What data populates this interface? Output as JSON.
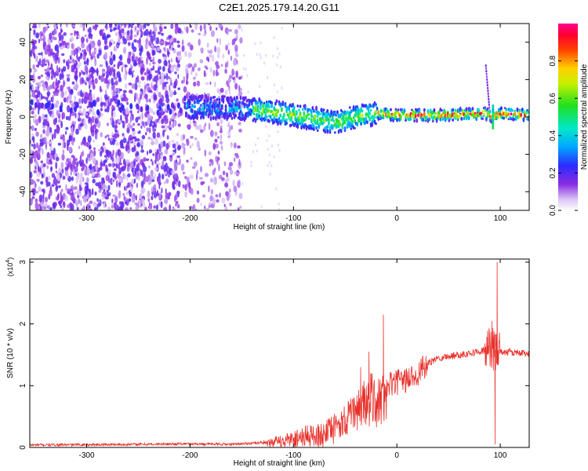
{
  "title": "C2E1.2025.179.14.20.G11",
  "chart_data": [
    {
      "type": "heatmap",
      "xlabel": "Height of straight line (km)",
      "ylabel": "Frequency (Hz)",
      "xlim": [
        -355,
        128
      ],
      "ylim": [
        -50,
        50
      ],
      "x_ticks": [
        -300,
        -200,
        -100,
        0,
        100
      ],
      "x_tick_labels": [
        "-300",
        "-200",
        "-100",
        "0",
        "100"
      ],
      "y_ticks": [
        -40,
        -20,
        0,
        20,
        40
      ],
      "y_tick_labels": [
        "-40",
        "-20",
        "0",
        "20",
        "40"
      ],
      "colorbar": {
        "label": "Normalized spectral amplitude",
        "range": [
          0,
          1
        ],
        "ticks": [
          0,
          0.2,
          0.4,
          0.6,
          0.8
        ],
        "tick_labels": [
          "0.0",
          "0.2",
          "0.4",
          "0.6",
          "0.8"
        ],
        "colormap": "rainbow (white-violet-blue-cyan-green-yellow-red-magenta)"
      },
      "ridge": {
        "description": "main signal band",
        "points": [
          {
            "x": -200,
            "y": 5
          },
          {
            "x": -160,
            "y": 5
          },
          {
            "x": -120,
            "y": 3
          },
          {
            "x": -90,
            "y": 0
          },
          {
            "x": -60,
            "y": -3
          },
          {
            "x": -40,
            "y": 0
          },
          {
            "x": -20,
            "y": 2
          },
          {
            "x": 0,
            "y": 1
          },
          {
            "x": 50,
            "y": 1
          },
          {
            "x": 85,
            "y": 2
          },
          {
            "x": 93,
            "y": 0
          },
          {
            "x": 100,
            "y": 2
          },
          {
            "x": 128,
            "y": 1
          }
        ]
      },
      "noise_region_x": [
        -355,
        -150
      ],
      "grid": false
    },
    {
      "type": "line",
      "xlabel": "Height of straight line (km)",
      "ylabel": "SNR (10 * v/v)",
      "y_multiplier": "(x10",
      "y_multiplier_exp": "4",
      "y_multiplier_close": ")",
      "xlim": [
        -355,
        128
      ],
      "ylim": [
        0,
        3.05
      ],
      "x_ticks": [
        -300,
        -200,
        -100,
        0,
        100
      ],
      "x_tick_labels": [
        "-300",
        "-200",
        "-100",
        "0",
        "100"
      ],
      "y_ticks": [
        0,
        1,
        2,
        3
      ],
      "y_tick_labels": [
        "0",
        "1",
        "2",
        "3"
      ],
      "series": [
        {
          "color": "#e8302a",
          "envelope": [
            {
              "x": -355,
              "y": 0.04
            },
            {
              "x": -250,
              "y": 0.05
            },
            {
              "x": -200,
              "y": 0.06
            },
            {
              "x": -160,
              "y": 0.05
            },
            {
              "x": -130,
              "y": 0.08
            },
            {
              "x": -110,
              "y": 0.15
            },
            {
              "x": -90,
              "y": 0.25
            },
            {
              "x": -70,
              "y": 0.3
            },
            {
              "x": -55,
              "y": 0.45
            },
            {
              "x": -45,
              "y": 0.6
            },
            {
              "x": -35,
              "y": 0.8
            },
            {
              "x": -25,
              "y": 0.9
            },
            {
              "x": -15,
              "y": 0.9
            },
            {
              "x": -10,
              "y": 1.0
            },
            {
              "x": 0,
              "y": 1.05
            },
            {
              "x": 10,
              "y": 1.1
            },
            {
              "x": 20,
              "y": 1.2
            },
            {
              "x": 30,
              "y": 1.35
            },
            {
              "x": 40,
              "y": 1.45
            },
            {
              "x": 60,
              "y": 1.5
            },
            {
              "x": 80,
              "y": 1.55
            },
            {
              "x": 90,
              "y": 1.6
            },
            {
              "x": 100,
              "y": 1.55
            },
            {
              "x": 128,
              "y": 1.52
            }
          ],
          "spikes": [
            {
              "x": -13,
              "y": 2.15
            },
            {
              "x": -35,
              "y": 1.3
            },
            {
              "x": -27,
              "y": 1.55
            },
            {
              "x": 92,
              "y": 2.05
            },
            {
              "x": 97,
              "y": 3.0
            },
            {
              "x": 95,
              "y": 0.05
            }
          ]
        }
      ],
      "grid": false
    }
  ]
}
